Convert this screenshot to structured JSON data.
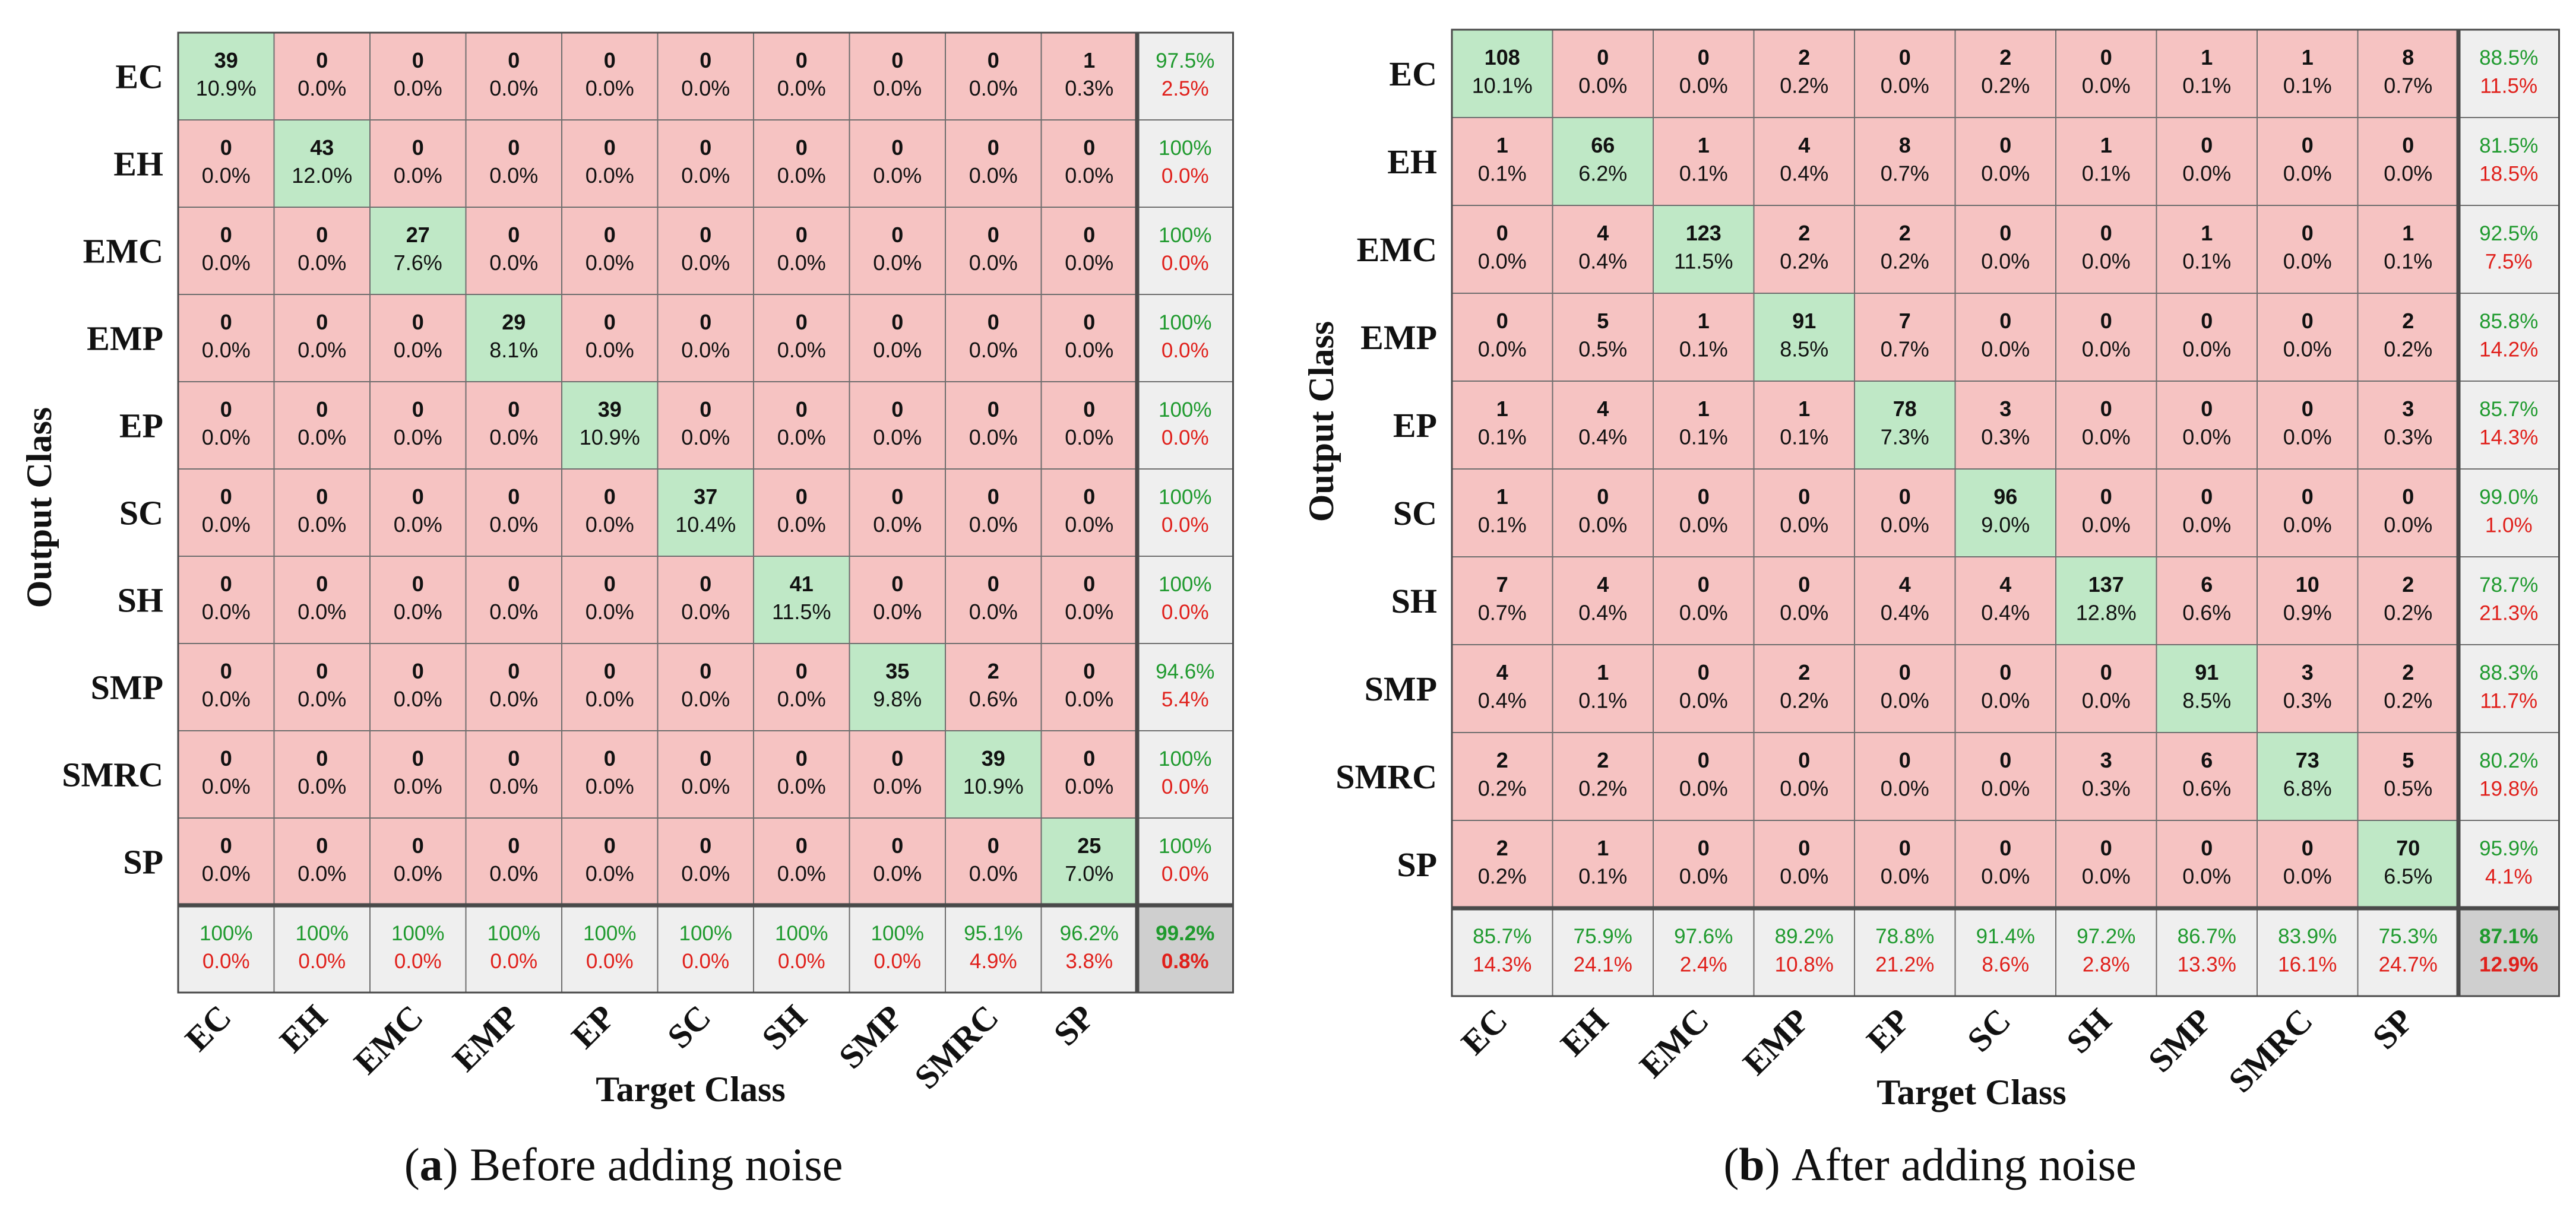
{
  "chart_data": [
    {
      "type": "heatmap",
      "subtitle_letter": "a",
      "subtitle_text": " Before adding noise",
      "xlabel": "Target Class",
      "ylabel": "Output Class",
      "classes": [
        "EC",
        "EH",
        "EMC",
        "EMP",
        "EP",
        "SC",
        "SH",
        "SMP",
        "SMRC",
        "SP"
      ],
      "counts": [
        [
          39,
          0,
          0,
          0,
          0,
          0,
          0,
          0,
          0,
          1
        ],
        [
          0,
          43,
          0,
          0,
          0,
          0,
          0,
          0,
          0,
          0
        ],
        [
          0,
          0,
          27,
          0,
          0,
          0,
          0,
          0,
          0,
          0
        ],
        [
          0,
          0,
          0,
          29,
          0,
          0,
          0,
          0,
          0,
          0
        ],
        [
          0,
          0,
          0,
          0,
          39,
          0,
          0,
          0,
          0,
          0
        ],
        [
          0,
          0,
          0,
          0,
          0,
          37,
          0,
          0,
          0,
          0
        ],
        [
          0,
          0,
          0,
          0,
          0,
          0,
          41,
          0,
          0,
          0
        ],
        [
          0,
          0,
          0,
          0,
          0,
          0,
          0,
          35,
          2,
          0
        ],
        [
          0,
          0,
          0,
          0,
          0,
          0,
          0,
          0,
          39,
          0
        ],
        [
          0,
          0,
          0,
          0,
          0,
          0,
          0,
          0,
          0,
          25
        ]
      ],
      "percents": [
        [
          "10.9%",
          "0.0%",
          "0.0%",
          "0.0%",
          "0.0%",
          "0.0%",
          "0.0%",
          "0.0%",
          "0.0%",
          "0.3%"
        ],
        [
          "0.0%",
          "12.0%",
          "0.0%",
          "0.0%",
          "0.0%",
          "0.0%",
          "0.0%",
          "0.0%",
          "0.0%",
          "0.0%"
        ],
        [
          "0.0%",
          "0.0%",
          "7.6%",
          "0.0%",
          "0.0%",
          "0.0%",
          "0.0%",
          "0.0%",
          "0.0%",
          "0.0%"
        ],
        [
          "0.0%",
          "0.0%",
          "0.0%",
          "8.1%",
          "0.0%",
          "0.0%",
          "0.0%",
          "0.0%",
          "0.0%",
          "0.0%"
        ],
        [
          "0.0%",
          "0.0%",
          "0.0%",
          "0.0%",
          "10.9%",
          "0.0%",
          "0.0%",
          "0.0%",
          "0.0%",
          "0.0%"
        ],
        [
          "0.0%",
          "0.0%",
          "0.0%",
          "0.0%",
          "0.0%",
          "10.4%",
          "0.0%",
          "0.0%",
          "0.0%",
          "0.0%"
        ],
        [
          "0.0%",
          "0.0%",
          "0.0%",
          "0.0%",
          "0.0%",
          "0.0%",
          "11.5%",
          "0.0%",
          "0.0%",
          "0.0%"
        ],
        [
          "0.0%",
          "0.0%",
          "0.0%",
          "0.0%",
          "0.0%",
          "0.0%",
          "0.0%",
          "9.8%",
          "0.6%",
          "0.0%"
        ],
        [
          "0.0%",
          "0.0%",
          "0.0%",
          "0.0%",
          "0.0%",
          "0.0%",
          "0.0%",
          "0.0%",
          "10.9%",
          "0.0%"
        ],
        [
          "0.0%",
          "0.0%",
          "0.0%",
          "0.0%",
          "0.0%",
          "0.0%",
          "0.0%",
          "0.0%",
          "0.0%",
          "7.0%"
        ]
      ],
      "row_summary": [
        [
          "97.5%",
          "2.5%"
        ],
        [
          "100%",
          "0.0%"
        ],
        [
          "100%",
          "0.0%"
        ],
        [
          "100%",
          "0.0%"
        ],
        [
          "100%",
          "0.0%"
        ],
        [
          "100%",
          "0.0%"
        ],
        [
          "100%",
          "0.0%"
        ],
        [
          "94.6%",
          "5.4%"
        ],
        [
          "100%",
          "0.0%"
        ],
        [
          "100%",
          "0.0%"
        ]
      ],
      "col_summary": [
        [
          "100%",
          "0.0%"
        ],
        [
          "100%",
          "0.0%"
        ],
        [
          "100%",
          "0.0%"
        ],
        [
          "100%",
          "0.0%"
        ],
        [
          "100%",
          "0.0%"
        ],
        [
          "100%",
          "0.0%"
        ],
        [
          "100%",
          "0.0%"
        ],
        [
          "100%",
          "0.0%"
        ],
        [
          "95.1%",
          "4.9%"
        ],
        [
          "96.2%",
          "3.8%"
        ]
      ],
      "overall": [
        "99.2%",
        "0.8%"
      ]
    },
    {
      "type": "heatmap",
      "subtitle_letter": "b",
      "subtitle_text": " After adding noise",
      "xlabel": "Target Class",
      "ylabel": "Output Class",
      "classes": [
        "EC",
        "EH",
        "EMC",
        "EMP",
        "EP",
        "SC",
        "SH",
        "SMP",
        "SMRC",
        "SP"
      ],
      "counts": [
        [
          108,
          0,
          0,
          2,
          0,
          2,
          0,
          1,
          1,
          8
        ],
        [
          1,
          66,
          1,
          4,
          8,
          0,
          1,
          0,
          0,
          0
        ],
        [
          0,
          4,
          123,
          2,
          2,
          0,
          0,
          1,
          0,
          1
        ],
        [
          0,
          5,
          1,
          91,
          7,
          0,
          0,
          0,
          0,
          2
        ],
        [
          1,
          4,
          1,
          1,
          78,
          3,
          0,
          0,
          0,
          3
        ],
        [
          1,
          0,
          0,
          0,
          0,
          96,
          0,
          0,
          0,
          0
        ],
        [
          7,
          4,
          0,
          0,
          4,
          4,
          137,
          6,
          10,
          2
        ],
        [
          4,
          1,
          0,
          2,
          0,
          0,
          0,
          91,
          3,
          2
        ],
        [
          2,
          2,
          0,
          0,
          0,
          0,
          3,
          6,
          73,
          5
        ],
        [
          2,
          1,
          0,
          0,
          0,
          0,
          0,
          0,
          0,
          70
        ]
      ],
      "percents": [
        [
          "10.1%",
          "0.0%",
          "0.0%",
          "0.2%",
          "0.0%",
          "0.2%",
          "0.0%",
          "0.1%",
          "0.1%",
          "0.7%"
        ],
        [
          "0.1%",
          "6.2%",
          "0.1%",
          "0.4%",
          "0.7%",
          "0.0%",
          "0.1%",
          "0.0%",
          "0.0%",
          "0.0%"
        ],
        [
          "0.0%",
          "0.4%",
          "11.5%",
          "0.2%",
          "0.2%",
          "0.0%",
          "0.0%",
          "0.1%",
          "0.0%",
          "0.1%"
        ],
        [
          "0.0%",
          "0.5%",
          "0.1%",
          "8.5%",
          "0.7%",
          "0.0%",
          "0.0%",
          "0.0%",
          "0.0%",
          "0.2%"
        ],
        [
          "0.1%",
          "0.4%",
          "0.1%",
          "0.1%",
          "7.3%",
          "0.3%",
          "0.0%",
          "0.0%",
          "0.0%",
          "0.3%"
        ],
        [
          "0.1%",
          "0.0%",
          "0.0%",
          "0.0%",
          "0.0%",
          "9.0%",
          "0.0%",
          "0.0%",
          "0.0%",
          "0.0%"
        ],
        [
          "0.7%",
          "0.4%",
          "0.0%",
          "0.0%",
          "0.4%",
          "0.4%",
          "12.8%",
          "0.6%",
          "0.9%",
          "0.2%"
        ],
        [
          "0.4%",
          "0.1%",
          "0.0%",
          "0.2%",
          "0.0%",
          "0.0%",
          "0.0%",
          "8.5%",
          "0.3%",
          "0.2%"
        ],
        [
          "0.2%",
          "0.2%",
          "0.0%",
          "0.0%",
          "0.0%",
          "0.0%",
          "0.3%",
          "0.6%",
          "6.8%",
          "0.5%"
        ],
        [
          "0.2%",
          "0.1%",
          "0.0%",
          "0.0%",
          "0.0%",
          "0.0%",
          "0.0%",
          "0.0%",
          "0.0%",
          "6.5%"
        ]
      ],
      "row_summary": [
        [
          "88.5%",
          "11.5%"
        ],
        [
          "81.5%",
          "18.5%"
        ],
        [
          "92.5%",
          "7.5%"
        ],
        [
          "85.8%",
          "14.2%"
        ],
        [
          "85.7%",
          "14.3%"
        ],
        [
          "99.0%",
          "1.0%"
        ],
        [
          "78.7%",
          "21.3%"
        ],
        [
          "88.3%",
          "11.7%"
        ],
        [
          "80.2%",
          "19.8%"
        ],
        [
          "95.9%",
          "4.1%"
        ]
      ],
      "col_summary": [
        [
          "85.7%",
          "14.3%"
        ],
        [
          "75.9%",
          "24.1%"
        ],
        [
          "97.6%",
          "2.4%"
        ],
        [
          "89.2%",
          "10.8%"
        ],
        [
          "78.8%",
          "21.2%"
        ],
        [
          "91.4%",
          "8.6%"
        ],
        [
          "97.2%",
          "2.8%"
        ],
        [
          "86.7%",
          "13.3%"
        ],
        [
          "83.9%",
          "16.1%"
        ],
        [
          "75.3%",
          "24.7%"
        ]
      ],
      "overall": [
        "87.1%",
        "12.9%"
      ]
    }
  ],
  "colors": {
    "correct_cell": "#bfe8c6",
    "wrong_cell": "#f6c3c2",
    "summary_cell": "#efefef",
    "overall_cell": "#cfcfcf",
    "good_text": "#1f9a2e",
    "bad_text": "#e0201b"
  }
}
